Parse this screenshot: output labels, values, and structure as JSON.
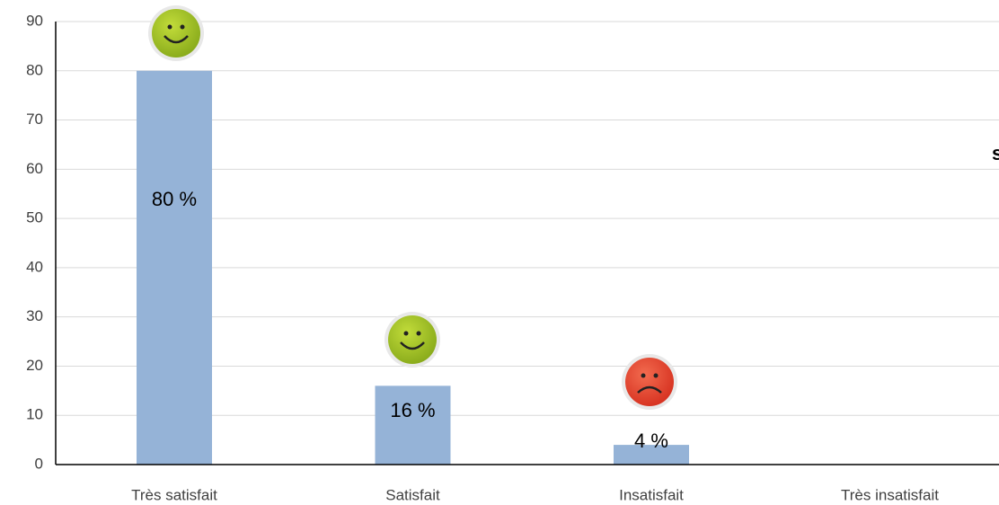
{
  "chart_data": {
    "type": "bar",
    "categories": [
      "Très satisfait",
      "Satisfait",
      "Insatisfait",
      "Très insatisfait"
    ],
    "values": [
      80,
      16,
      4,
      null
    ],
    "value_labels": [
      "80 %",
      "16 %",
      "4 %",
      null
    ],
    "color": "#95b3d7",
    "ylim": [
      0,
      90
    ],
    "yticks": [
      0,
      10,
      20,
      30,
      40,
      50,
      60,
      70,
      80,
      90
    ],
    "grid": true,
    "annotation": "s"
  }
}
